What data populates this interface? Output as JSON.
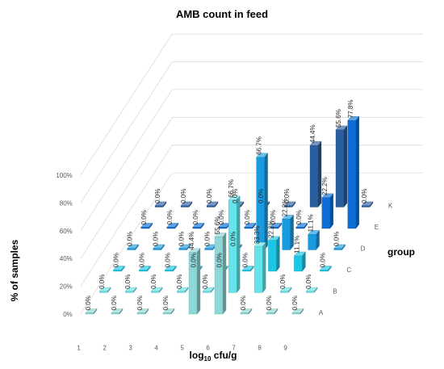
{
  "chart_data": {
    "type": "bar",
    "variant": "3d-column",
    "title": "AMB count in feed",
    "xlabel_main": "log",
    "xlabel_sub": "10",
    "xlabel_rest": " cfu/g",
    "ylabel": "% of samples",
    "zlabel": "group",
    "categories": [
      "1",
      "2",
      "3",
      "4",
      "5",
      "6",
      "7",
      "8",
      "9"
    ],
    "yticks": [
      "0%",
      "20%",
      "40%",
      "60%",
      "80%",
      "100%"
    ],
    "ylim": [
      0,
      100
    ],
    "grid": true,
    "series": [
      {
        "name": "A",
        "color": "#8fd6d6",
        "values": [
          0,
          0,
          0,
          0,
          44.4,
          55.6,
          0,
          0,
          0
        ],
        "labels": [
          "0.0%",
          "0.0%",
          "0.0%",
          "0.0%",
          "44.4%",
          "55.6%",
          "0.0%",
          "0.0%",
          "0.0%"
        ]
      },
      {
        "name": "B",
        "color": "#66e4ea",
        "values": [
          0,
          0,
          0,
          0,
          0,
          66.7,
          33.3,
          0,
          0
        ],
        "labels": [
          "0.0%",
          "0.0%",
          "0.0%",
          "0.0%",
          "0.0%",
          "66.7%",
          "33.3%",
          "0.0%",
          "0.0%"
        ]
      },
      {
        "name": "C",
        "color": "#1cc6e6",
        "values": [
          0,
          0,
          0,
          0,
          0,
          0,
          22.2,
          11.1,
          0
        ],
        "labels": [
          "0.0%",
          "0.0%",
          "0.0%",
          "0.0%",
          "0.0%",
          "0.0%",
          "22.2%",
          "11.1%",
          "0.0%"
        ]
      },
      {
        "name": "D",
        "color": "#1a9be0",
        "values": [
          0,
          0,
          0,
          0,
          0,
          66.7,
          22.2,
          11.1,
          0
        ],
        "labels": [
          "0.0%",
          "0.0%",
          "0.0%",
          "0.0%",
          "0.0%",
          "66.7%",
          "22.2%",
          "11.1%",
          "0.0%"
        ]
      },
      {
        "name": "E",
        "color": "#0a6fd8",
        "values": [
          0,
          0,
          0,
          0,
          0,
          0,
          0,
          22.2,
          77.8
        ],
        "labels": [
          "0.0%",
          "0.0%",
          "0.0%",
          "0.0%",
          "0.0%",
          "0.0%",
          "0.0%",
          "22.2%",
          "77.8%"
        ]
      },
      {
        "name": "K",
        "color": "#2a5e9e",
        "values": [
          0,
          0,
          0,
          0,
          0,
          0,
          44.4,
          55.6,
          0
        ],
        "labels": [
          "0.0%",
          "0.0%",
          "0.0%",
          "0.0%",
          "0.0%",
          "0.0%",
          "44.4%",
          "55.6%",
          "0.0%"
        ]
      }
    ]
  }
}
